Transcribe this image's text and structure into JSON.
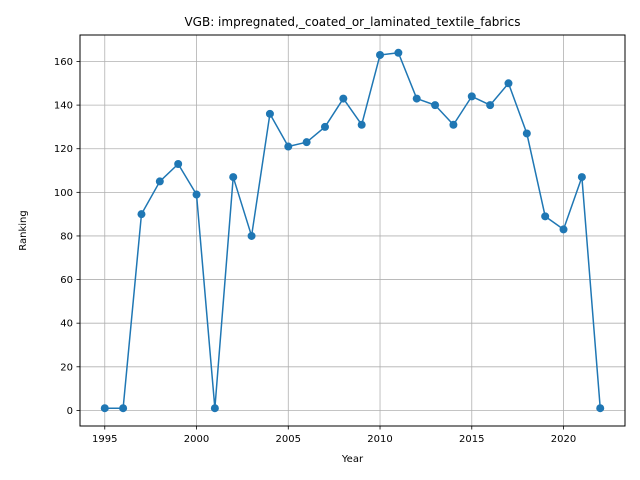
{
  "chart_data": {
    "type": "line",
    "title": "VGB: impregnated,_coated_or_laminated_textile_fabrics",
    "xlabel": "Year",
    "ylabel": "Ranking",
    "x": [
      1995,
      1996,
      1997,
      1998,
      1999,
      2000,
      2001,
      2002,
      2003,
      2004,
      2005,
      2006,
      2007,
      2008,
      2009,
      2010,
      2011,
      2012,
      2013,
      2014,
      2015,
      2016,
      2017,
      2018,
      2019,
      2020,
      2021,
      2022
    ],
    "series": [
      {
        "values": [
          1,
          1,
          90,
          105,
          113,
          99,
          1,
          107,
          80,
          136,
          121,
          123,
          130,
          143,
          131,
          163,
          164,
          143,
          140,
          131,
          144,
          140,
          150,
          127,
          89,
          83,
          107,
          1
        ],
        "color": "#1f77b4",
        "marker": "circle"
      }
    ],
    "xlim": [
      1993.65,
      1995.0
    ],
    "xticks": [
      1995,
      2000,
      2005,
      2010,
      2015,
      2020
    ],
    "ylim": [
      -7.15,
      172.15
    ],
    "yticks": [
      0,
      20,
      40,
      60,
      80,
      100,
      120,
      140,
      160
    ],
    "grid": true
  }
}
